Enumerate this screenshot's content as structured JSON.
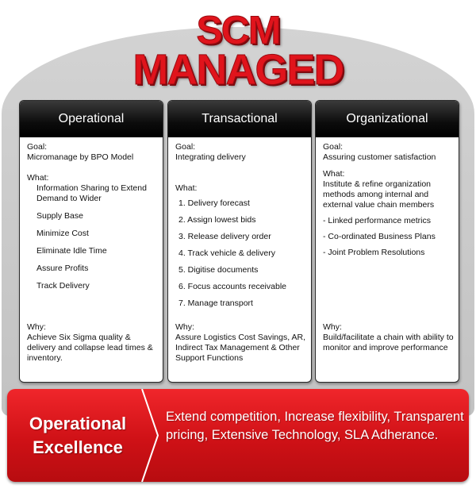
{
  "title": {
    "line1": "SCM",
    "line2": "MANAGED"
  },
  "columns": [
    {
      "heading": "Operational",
      "goal_label": "Goal:",
      "goal": "Micromanage by BPO Model",
      "what_label": "What:",
      "what_items": [
        "Information Sharing to Extend Demand to Wider",
        "Supply Base",
        "Minimize Cost",
        "Eliminate Idle Time",
        "Assure Profits",
        "Track Delivery"
      ],
      "why_label": "Why:",
      "why": "Achieve Six Sigma quality & delivery and collapse lead times & inventory."
    },
    {
      "heading": "Transactional",
      "goal_label": "Goal:",
      "goal": "Integrating delivery",
      "what_label": "What:",
      "what_items": [
        "1. Delivery forecast",
        "2. Assign lowest bids",
        "3. Release delivery order",
        "4. Track vehicle & delivery",
        "5. Digitise documents",
        "6. Focus accounts receivable",
        "7. Manage transport"
      ],
      "why_label": "Why:",
      "why": "Assure Logistics Cost Savings, AR, Indirect Tax Management & Other Support Functions"
    },
    {
      "heading": "Organizational",
      "goal_label": "Goal:",
      "goal": "Assuring customer satisfaction",
      "what_label": "What:",
      "what_intro": "Institute & refine organization methods among internal and external value chain members",
      "what_items": [
        "- Linked performance metrics",
        "- Co-ordinated Business Plans",
        "- Joint Problem Resolutions"
      ],
      "why_label": "Why:",
      "why": "Build/facilitate a chain with ability to monitor and improve performance"
    }
  ],
  "banner": {
    "label_line1": "Operational",
    "label_line2": "Excellence",
    "text": "Extend competition, Increase flexibility, Transparent  pricing, Extensive Technology, SLA Adherance."
  },
  "colors": {
    "accent_red": "#e0141c",
    "header_black": "#0c0c0c",
    "dome_gray": "#c8c8c8"
  }
}
